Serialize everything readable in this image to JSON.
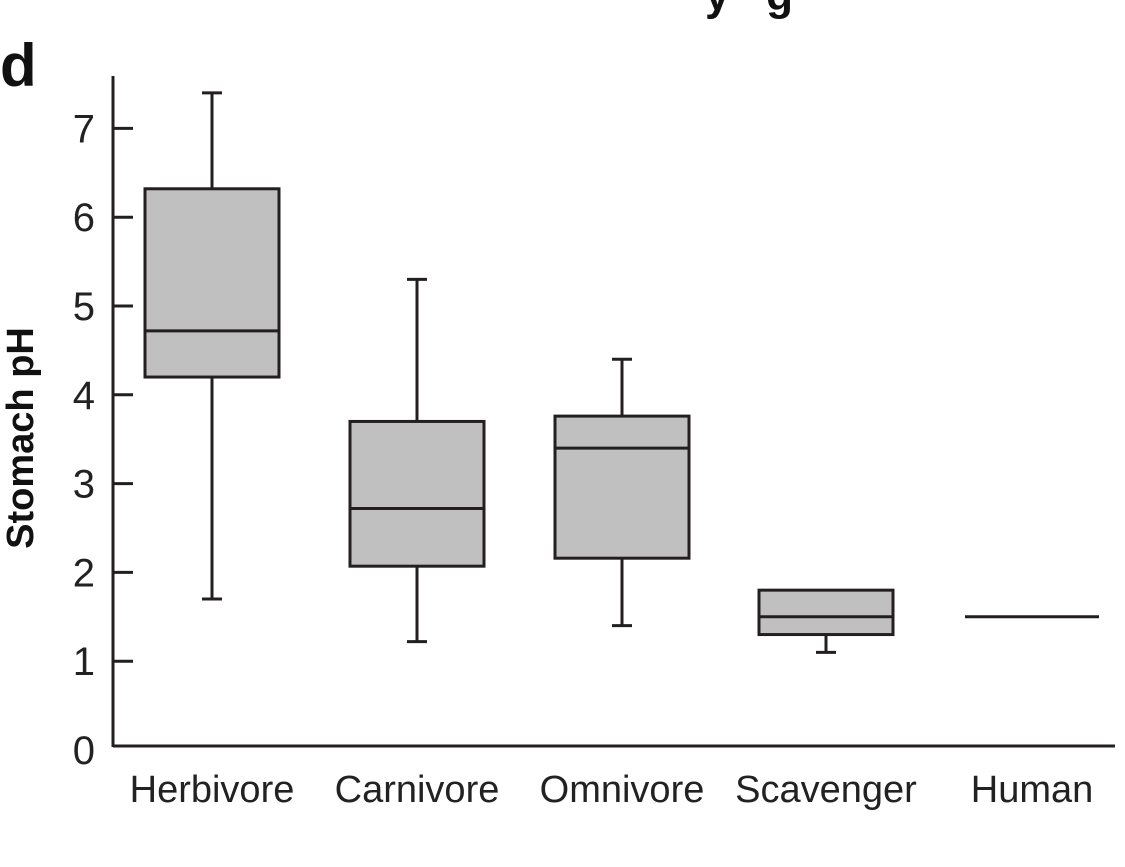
{
  "panel_label": "d",
  "title_visible_fragment": "y   g",
  "colors": {
    "box_fill": "#c0c0c0",
    "stroke": "#231f20",
    "background": "#ffffff"
  },
  "chart_data": {
    "type": "boxplot",
    "title": "",
    "xlabel": "",
    "ylabel": "Stomach pH",
    "ylim": [
      0,
      7.5
    ],
    "yticks": [
      "0",
      "1",
      "2",
      "3",
      "4",
      "5",
      "6",
      "7"
    ],
    "grid": false,
    "legend": "none",
    "categories": [
      "Herbivore",
      "Carnivore",
      "Omnivore",
      "Scavenger",
      "Human"
    ],
    "series": [
      {
        "category": "Herbivore",
        "whisker_low": 1.7,
        "q1": 4.2,
        "median": 4.72,
        "q3": 6.32,
        "whisker_high": 7.4
      },
      {
        "category": "Carnivore",
        "whisker_low": 1.22,
        "q1": 2.07,
        "median": 2.72,
        "q3": 3.7,
        "whisker_high": 5.3
      },
      {
        "category": "Omnivore",
        "whisker_low": 1.4,
        "q1": 2.16,
        "median": 3.4,
        "q3": 3.76,
        "whisker_high": 4.4
      },
      {
        "category": "Scavenger",
        "whisker_low": 1.1,
        "q1": 1.3,
        "median": 1.5,
        "q3": 1.8,
        "whisker_high": 1.8
      },
      {
        "category": "Human",
        "whisker_low": 1.5,
        "q1": 1.5,
        "median": 1.5,
        "q3": 1.5,
        "whisker_high": 1.5
      }
    ]
  }
}
